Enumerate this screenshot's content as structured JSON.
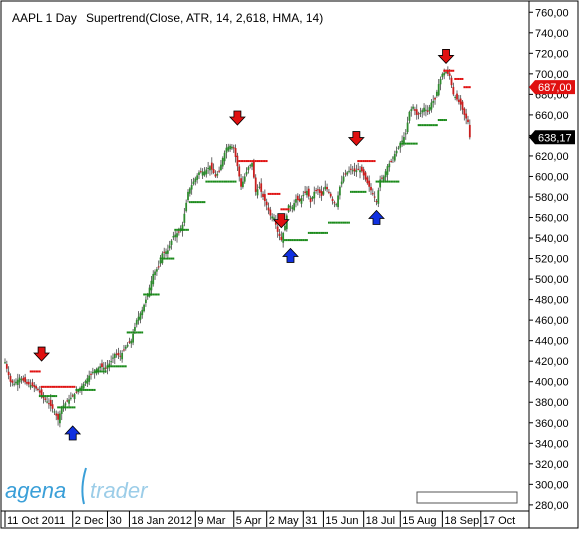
{
  "header": {
    "instrument": "AAPL 1 Day",
    "indicator": "Supertrend(Close, ATR, 14, 2,618, HMA, 14)"
  },
  "brand": {
    "name_left": "agena",
    "name_right": "trader",
    "logo": "agenatrader-swoosh-logo"
  },
  "colors": {
    "background": "#ffffff",
    "up_candle": "#2e8b2e",
    "down_candle": "#c81e1e",
    "support_line": "#1a8a1a",
    "resistance_line": "#e01010",
    "buy_arrow": "#1030e0",
    "sell_arrow": "#e01010",
    "price_tag_red": "#e01010",
    "price_tag_black": "#000000"
  },
  "chart_data": {
    "type": "candlestick",
    "title": "AAPL 1 Day",
    "indicator": "Supertrend(Close, ATR, 14, 2,618, HMA, 14)",
    "ylim": [
      275,
      770
    ],
    "y_ticks": [
      "760,00",
      "740,00",
      "720,00",
      "700,00",
      "680,00",
      "660,00",
      "640,00",
      "620,00",
      "600,00",
      "580,00",
      "560,00",
      "540,00",
      "520,00",
      "500,00",
      "480,00",
      "460,00",
      "440,00",
      "420,00",
      "400,00",
      "380,00",
      "360,00",
      "340,00",
      "320,00",
      "300,00",
      "280,00"
    ],
    "x_labels": [
      {
        "label": "11 Oct 2011",
        "index": 0
      },
      {
        "label": "2 Dec",
        "index": 37
      },
      {
        "label": "30",
        "index": 56
      },
      {
        "label": "18 Jan 2012",
        "index": 68
      },
      {
        "label": "9 Mar",
        "index": 104
      },
      {
        "label": "5 Apr",
        "index": 125
      },
      {
        "label": "2 May",
        "index": 143
      },
      {
        "label": "31",
        "index": 163
      },
      {
        "label": "15 Jun",
        "index": 174
      },
      {
        "label": "18 Jul",
        "index": 196
      },
      {
        "label": "15 Aug",
        "index": 216
      },
      {
        "label": "18 Sep",
        "index": 239
      },
      {
        "label": "17 Oct",
        "index": 260
      }
    ],
    "last_price": {
      "label": "638,17",
      "value": 638.17
    },
    "stop_level": {
      "label": "687,00",
      "value": 687.0
    },
    "close_anchors": [
      [
        0,
        419
      ],
      [
        3,
        400
      ],
      [
        5,
        398
      ],
      [
        8,
        404
      ],
      [
        12,
        398
      ],
      [
        15,
        396
      ],
      [
        18,
        392
      ],
      [
        21,
        384
      ],
      [
        24,
        379
      ],
      [
        27,
        371
      ],
      [
        29,
        363
      ],
      [
        31,
        375
      ],
      [
        34,
        381
      ],
      [
        37,
        386
      ],
      [
        40,
        392
      ],
      [
        43,
        398
      ],
      [
        46,
        406
      ],
      [
        49,
        411
      ],
      [
        52,
        415
      ],
      [
        55,
        413
      ],
      [
        58,
        420
      ],
      [
        60,
        427
      ],
      [
        63,
        425
      ],
      [
        66,
        434
      ],
      [
        69,
        440
      ],
      [
        72,
        460
      ],
      [
        75,
        470
      ],
      [
        78,
        485
      ],
      [
        81,
        505
      ],
      [
        84,
        512
      ],
      [
        86,
        525
      ],
      [
        89,
        528
      ],
      [
        92,
        542
      ],
      [
        95,
        546
      ],
      [
        97,
        553
      ],
      [
        100,
        585
      ],
      [
        103,
        595
      ],
      [
        106,
        604
      ],
      [
        109,
        605
      ],
      [
        112,
        610
      ],
      [
        115,
        600
      ],
      [
        117,
        605
      ],
      [
        119,
        618
      ],
      [
        121,
        628
      ],
      [
        123,
        630
      ],
      [
        125,
        628
      ],
      [
        127,
        610
      ],
      [
        129,
        590
      ],
      [
        131,
        600
      ],
      [
        133,
        609
      ],
      [
        135,
        613
      ],
      [
        137,
        585
      ],
      [
        139,
        590
      ],
      [
        141,
        580
      ],
      [
        143,
        572
      ],
      [
        145,
        562
      ],
      [
        147,
        560
      ],
      [
        149,
        546
      ],
      [
        151,
        538
      ],
      [
        153,
        552
      ],
      [
        155,
        572
      ],
      [
        157,
        570
      ],
      [
        159,
        578
      ],
      [
        161,
        576
      ],
      [
        163,
        582
      ],
      [
        165,
        586
      ],
      [
        167,
        575
      ],
      [
        169,
        585
      ],
      [
        171,
        587
      ],
      [
        173,
        581
      ],
      [
        175,
        590
      ],
      [
        177,
        585
      ],
      [
        179,
        576
      ],
      [
        181,
        573
      ],
      [
        183,
        590
      ],
      [
        185,
        600
      ],
      [
        187,
        604
      ],
      [
        189,
        607
      ],
      [
        191,
        605
      ],
      [
        193,
        607
      ],
      [
        195,
        605
      ],
      [
        197,
        597
      ],
      [
        199,
        590
      ],
      [
        201,
        583
      ],
      [
        203,
        576
      ],
      [
        205,
        597
      ],
      [
        207,
        600
      ],
      [
        209,
        610
      ],
      [
        211,
        615
      ],
      [
        213,
        622
      ],
      [
        215,
        628
      ],
      [
        217,
        635
      ],
      [
        219,
        642
      ],
      [
        221,
        663
      ],
      [
        223,
        668
      ],
      [
        225,
        660
      ],
      [
        227,
        662
      ],
      [
        229,
        667
      ],
      [
        231,
        663
      ],
      [
        233,
        672
      ],
      [
        235,
        675
      ],
      [
        237,
        690
      ],
      [
        239,
        700
      ],
      [
        241,
        702
      ],
      [
        243,
        698
      ],
      [
        245,
        680
      ],
      [
        247,
        675
      ],
      [
        249,
        670
      ],
      [
        251,
        660
      ],
      [
        253,
        653
      ],
      [
        254,
        638.17
      ]
    ],
    "supertrend_support": [
      {
        "from": 19,
        "to": 28,
        "level": 386
      },
      {
        "from": 29,
        "to": 38,
        "level": 375
      },
      {
        "from": 39,
        "to": 49,
        "level": 392
      },
      {
        "from": 50,
        "to": 55,
        "level": 410
      },
      {
        "from": 56,
        "to": 66,
        "level": 415
      },
      {
        "from": 67,
        "to": 75,
        "level": 448
      },
      {
        "from": 76,
        "to": 84,
        "level": 485
      },
      {
        "from": 85,
        "to": 92,
        "level": 520
      },
      {
        "from": 93,
        "to": 100,
        "level": 548
      },
      {
        "from": 101,
        "to": 109,
        "level": 575
      },
      {
        "from": 110,
        "to": 126,
        "level": 595
      },
      {
        "from": 153,
        "to": 165,
        "level": 538
      },
      {
        "from": 166,
        "to": 176,
        "level": 545
      },
      {
        "from": 177,
        "to": 188,
        "level": 555
      },
      {
        "from": 189,
        "to": 197,
        "level": 585
      },
      {
        "from": 203,
        "to": 215,
        "level": 595
      },
      {
        "from": 216,
        "to": 225,
        "level": 632
      },
      {
        "from": 226,
        "to": 236,
        "level": 650
      },
      {
        "from": 237,
        "to": 241,
        "level": 655
      }
    ],
    "supertrend_resistance": [
      {
        "from": 14,
        "to": 19,
        "level": 410
      },
      {
        "from": 20,
        "to": 38,
        "level": 395
      },
      {
        "from": 128,
        "to": 143,
        "level": 615
      },
      {
        "from": 144,
        "to": 150,
        "level": 583
      },
      {
        "from": 151,
        "to": 155,
        "level": 568
      },
      {
        "from": 193,
        "to": 202,
        "level": 615
      },
      {
        "from": 240,
        "to": 245,
        "level": 703
      },
      {
        "from": 246,
        "to": 250,
        "level": 695
      },
      {
        "from": 251,
        "to": 254,
        "level": 687
      }
    ],
    "sell_signals": [
      {
        "index": 20,
        "price": 425
      },
      {
        "index": 127,
        "price": 655
      },
      {
        "index": 151,
        "price": 555
      },
      {
        "index": 192,
        "price": 635
      },
      {
        "index": 241,
        "price": 715
      }
    ],
    "buy_signals": [
      {
        "index": 37,
        "price": 352
      },
      {
        "index": 156,
        "price": 525
      },
      {
        "index": 203,
        "price": 562
      }
    ]
  }
}
